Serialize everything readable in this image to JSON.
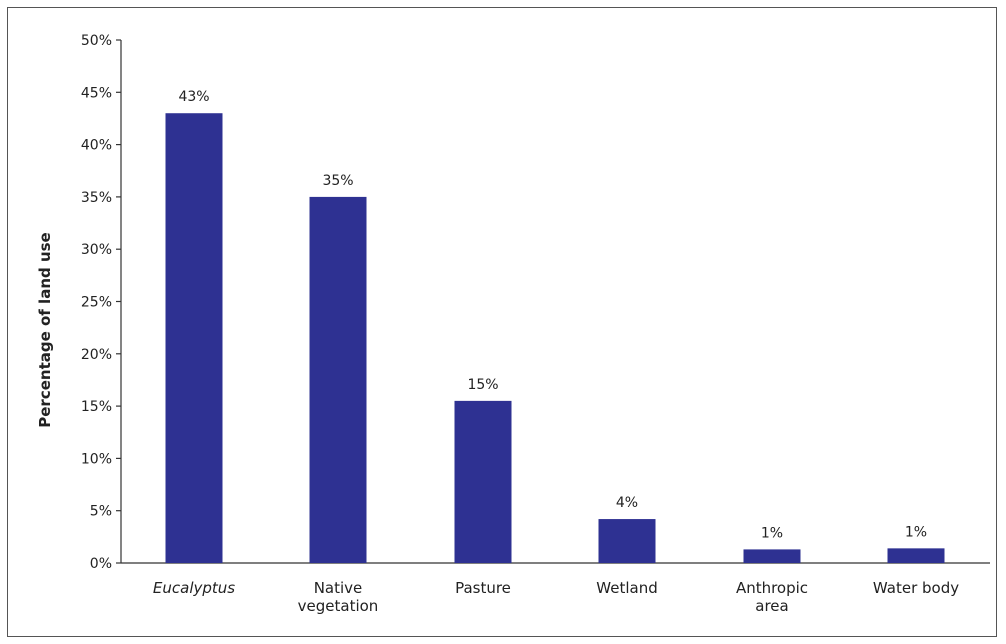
{
  "chart_data": {
    "type": "bar",
    "title": "",
    "xlabel": "",
    "ylabel": "Percentage of land use",
    "categories": [
      {
        "lines": [
          "Eucalyptus"
        ],
        "italic": true
      },
      {
        "lines": [
          "Native",
          "vegetation"
        ],
        "italic": false
      },
      {
        "lines": [
          "Pasture"
        ],
        "italic": false
      },
      {
        "lines": [
          "Wetland"
        ],
        "italic": false
      },
      {
        "lines": [
          "Anthropic",
          "area"
        ],
        "italic": false
      },
      {
        "lines": [
          "Water body"
        ],
        "italic": false
      }
    ],
    "values": [
      43,
      35,
      15.5,
      4.2,
      1.3,
      1.4
    ],
    "value_labels": [
      "43%",
      "35%",
      "15%",
      "4%",
      "1%",
      "1%"
    ],
    "ylim": [
      0,
      50
    ],
    "yticks": [
      0,
      5,
      10,
      15,
      20,
      25,
      30,
      35,
      40,
      45,
      50
    ],
    "ytick_labels": [
      "0%",
      "5%",
      "10%",
      "15%",
      "20%",
      "25%",
      "30%",
      "35%",
      "40%",
      "45%",
      "50%"
    ],
    "grid": false,
    "legend": "none",
    "bar_color": "#2e3192",
    "axis_color": "#333333"
  }
}
